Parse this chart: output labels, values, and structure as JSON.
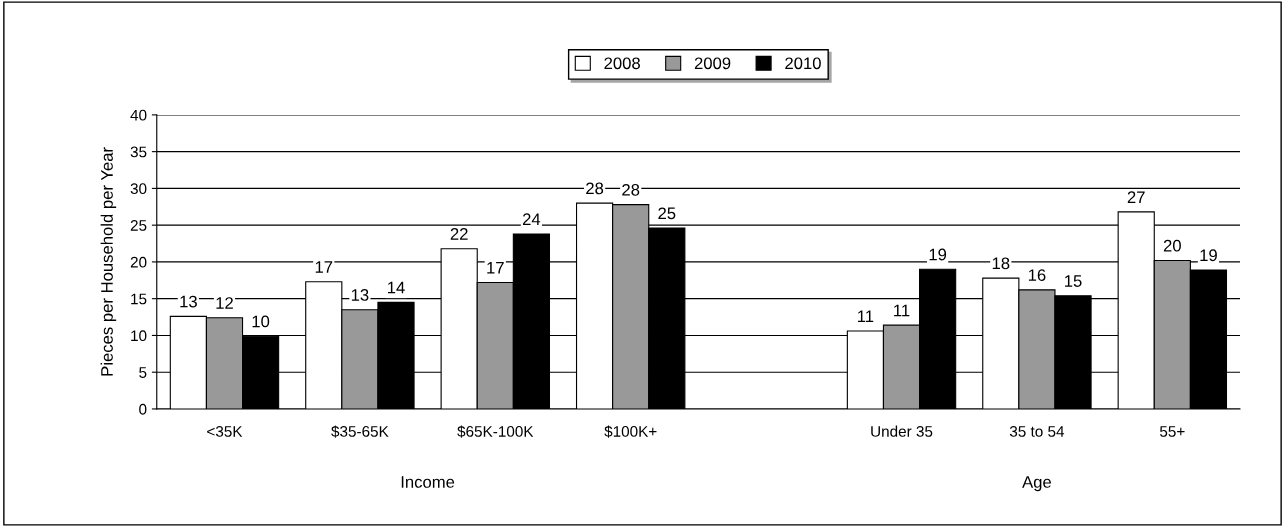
{
  "chart_data": {
    "type": "bar",
    "ylabel": "Pieces per Household per Year",
    "categories": [
      "<35K",
      "$35-65K",
      "$65K-100K",
      "$100K+",
      null,
      "Under 35",
      "35 to 54",
      "55+"
    ],
    "series": [
      {
        "name": "2008",
        "color": "#ffffff",
        "values": [
          12.6,
          17.3,
          21.8,
          28.0,
          null,
          10.6,
          17.8,
          26.8
        ],
        "value_labels": [
          "13",
          "17",
          "22",
          "28",
          null,
          "11",
          "18",
          "27"
        ]
      },
      {
        "name": "2009",
        "color": "#999999",
        "values": [
          12.4,
          13.5,
          17.2,
          27.8,
          null,
          11.4,
          16.2,
          20.2
        ],
        "value_labels": [
          "12",
          "13",
          "17",
          "28",
          null,
          "11",
          "16",
          "20"
        ]
      },
      {
        "name": "2010",
        "color": "#000000",
        "values": [
          9.9,
          14.5,
          23.8,
          24.6,
          null,
          19.0,
          15.4,
          18.9
        ],
        "value_labels": [
          "10",
          "14",
          "24",
          "25",
          null,
          "19",
          "15",
          "19"
        ]
      }
    ],
    "ylim": [
      0,
      40
    ],
    "yticks": [
      0,
      5,
      10,
      15,
      20,
      25,
      30,
      35,
      40
    ],
    "grid": "y",
    "legend": "top",
    "annotations": [
      "Income",
      "Age"
    ]
  }
}
